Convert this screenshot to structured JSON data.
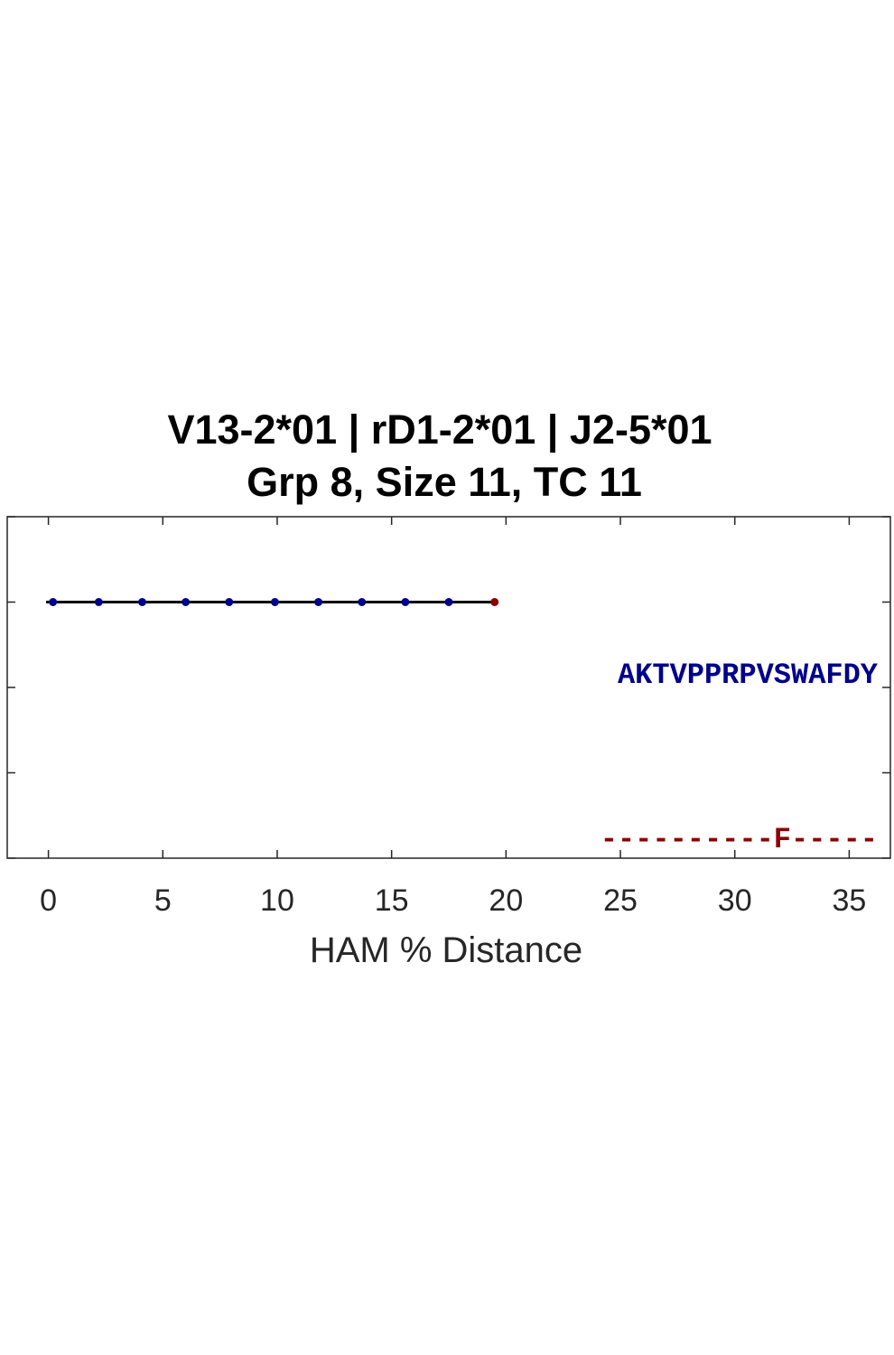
{
  "chart_data": {
    "type": "line",
    "title_lines": [
      "V13-2*01 | rD1-2*01 | J2-5*01",
      "Grp 8, Size 11, TC 11"
    ],
    "xlabel": "HAM % Distance",
    "ylabel": "",
    "xlim": [
      -1.8,
      36.8
    ],
    "ylim": [
      0.5,
      2.5
    ],
    "x_ticks": [
      0,
      5,
      10,
      15,
      20,
      25,
      30,
      35
    ],
    "x_tick_labels": [
      "0",
      "5",
      "10",
      "15",
      "20",
      "25",
      "30",
      "35"
    ],
    "y_ticks": [
      0.5,
      1.0,
      1.5,
      2.0,
      2.5
    ],
    "grid": false,
    "series": [
      {
        "line": {
          "x": [
            -0.1,
            19.5
          ],
          "y": 2,
          "color": "#000000"
        },
        "points": [
          {
            "x": 0.2,
            "y": 2,
            "color": "#00008b"
          },
          {
            "x": 2.2,
            "y": 2,
            "color": "#00008b"
          },
          {
            "x": 4.1,
            "y": 2,
            "color": "#00008b"
          },
          {
            "x": 6.0,
            "y": 2,
            "color": "#00008b"
          },
          {
            "x": 7.9,
            "y": 2,
            "color": "#00008b"
          },
          {
            "x": 9.9,
            "y": 2,
            "color": "#00008b"
          },
          {
            "x": 11.8,
            "y": 2,
            "color": "#00008b"
          },
          {
            "x": 13.7,
            "y": 2,
            "color": "#00008b"
          },
          {
            "x": 15.6,
            "y": 2,
            "color": "#00008b"
          },
          {
            "x": 17.5,
            "y": 2,
            "color": "#00008b"
          },
          {
            "x": 19.5,
            "y": 2,
            "color": "#8b0000"
          }
        ]
      }
    ],
    "annotations": [
      {
        "text": "AKTVPPRPVSWAFDY",
        "y": 2,
        "color": "#00008b"
      },
      {
        "text": "----------F-----",
        "y": 1.0,
        "color": "#8b0000"
      }
    ]
  }
}
